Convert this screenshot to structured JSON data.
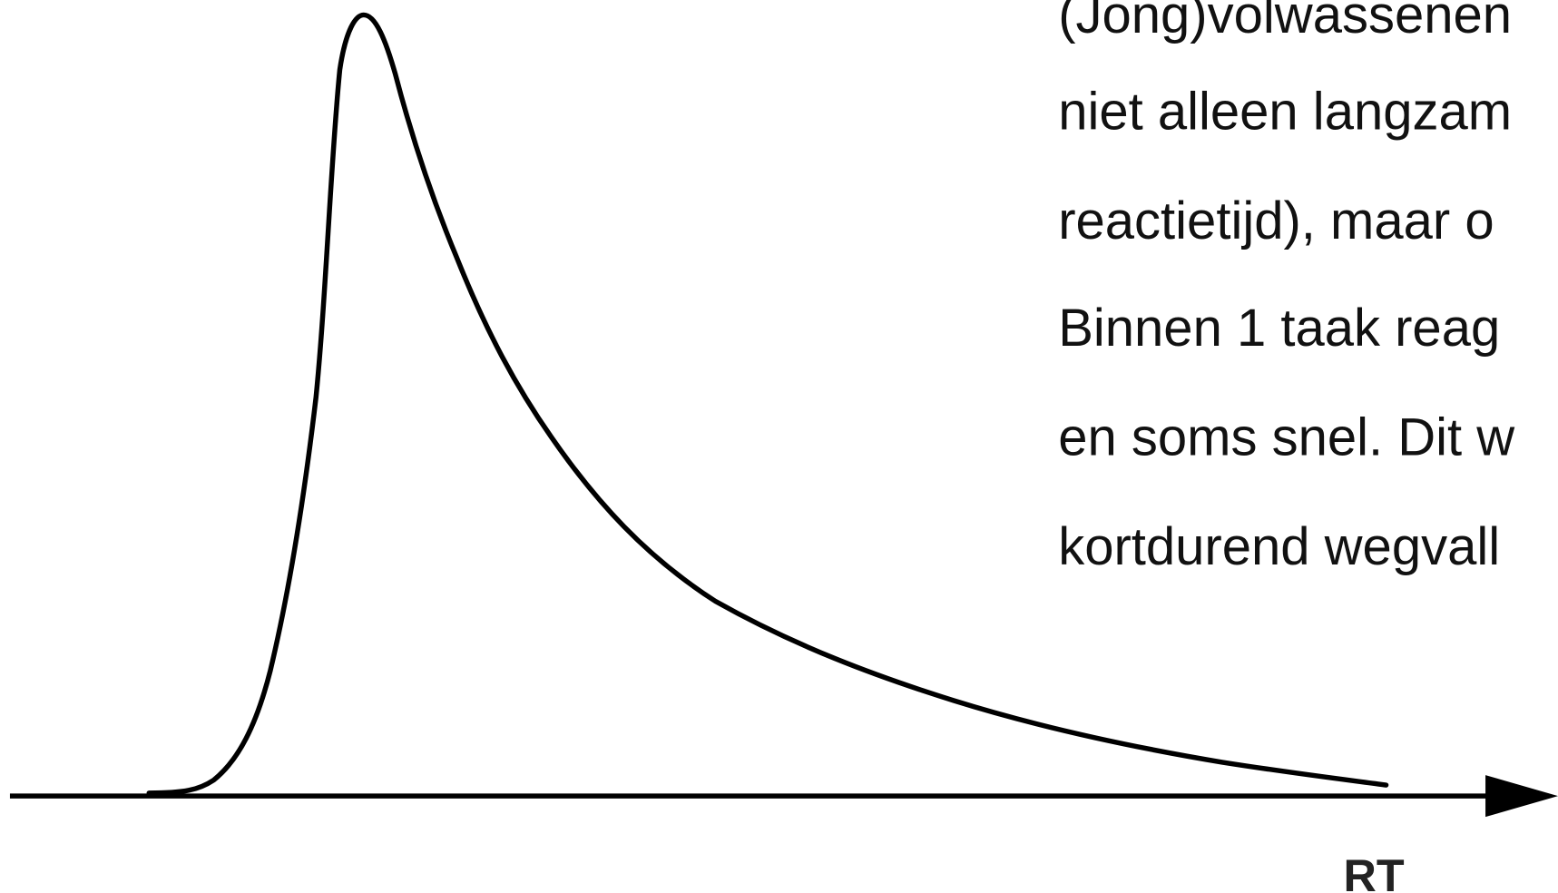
{
  "axis_label": "RT",
  "text_lines": [
    "(Jong)volwassenen",
    "niet alleen langzam",
    "reactietijd), maar o",
    "Binnen 1 taak reag",
    "en soms snel. Dit w",
    "kortdurend wegvall"
  ]
}
